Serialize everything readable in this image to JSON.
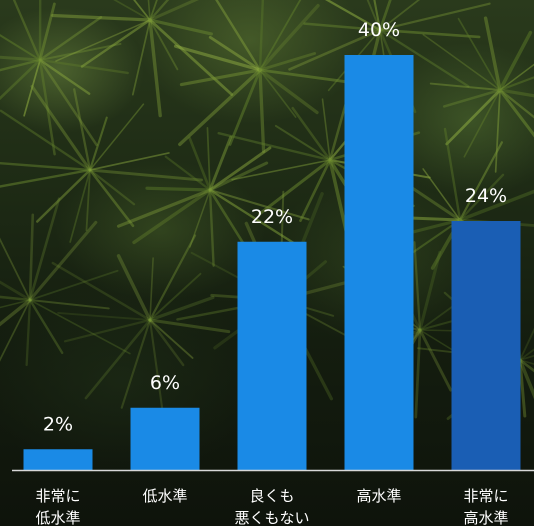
{
  "chart_data": {
    "type": "bar",
    "categories": [
      [
        "非常に",
        "低水準"
      ],
      [
        "低水準"
      ],
      [
        "良くも",
        "悪くもない"
      ],
      [
        "高水準"
      ],
      [
        "非常に",
        "高水準"
      ]
    ],
    "values": [
      2,
      6,
      22,
      40,
      24
    ],
    "value_labels": [
      "2%",
      "6%",
      "22%",
      "40%",
      "24%"
    ],
    "bar_colors": [
      "#1a8ae6",
      "#1a8ae6",
      "#1a8ae6",
      "#1a8ae6",
      "#1a5eb4"
    ],
    "ylim": [
      0,
      40
    ],
    "grid": false,
    "axis_line_color": "#d8d8d8"
  }
}
